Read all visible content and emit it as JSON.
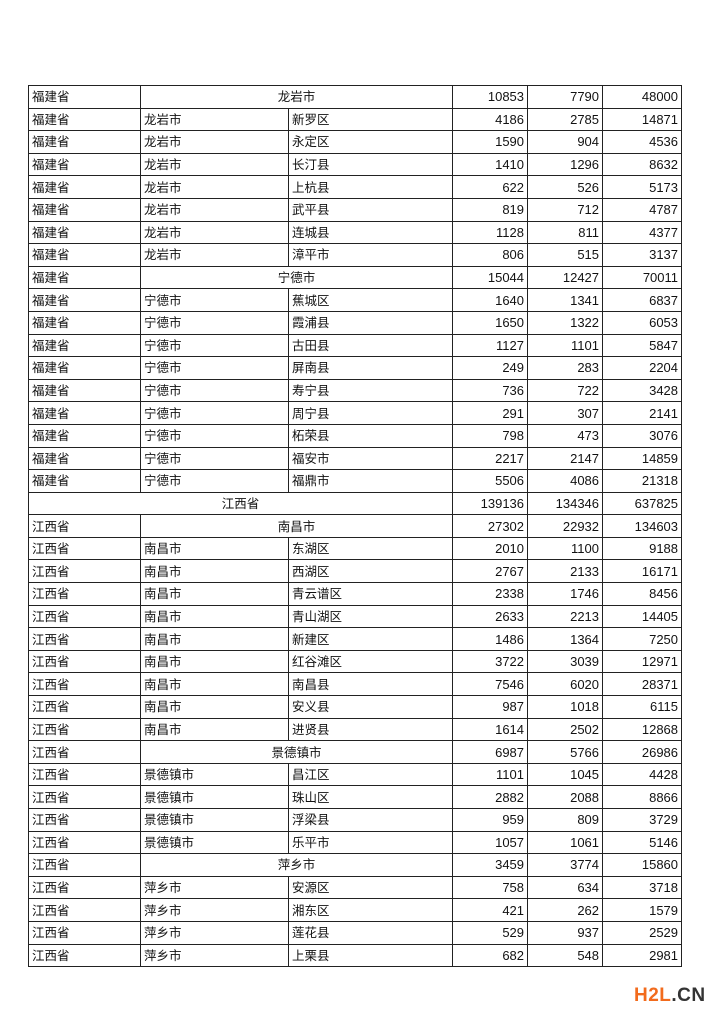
{
  "rows": [
    {
      "type": "city",
      "province": "福建省",
      "city": "龙岩市",
      "v": [
        "10853",
        "7790",
        "48000"
      ]
    },
    {
      "type": "county",
      "province": "福建省",
      "city": "龙岩市",
      "county": "新罗区",
      "v": [
        "4186",
        "2785",
        "14871"
      ]
    },
    {
      "type": "county",
      "province": "福建省",
      "city": "龙岩市",
      "county": "永定区",
      "v": [
        "1590",
        "904",
        "4536"
      ]
    },
    {
      "type": "county",
      "province": "福建省",
      "city": "龙岩市",
      "county": "长汀县",
      "v": [
        "1410",
        "1296",
        "8632"
      ]
    },
    {
      "type": "county",
      "province": "福建省",
      "city": "龙岩市",
      "county": "上杭县",
      "v": [
        "622",
        "526",
        "5173"
      ]
    },
    {
      "type": "county",
      "province": "福建省",
      "city": "龙岩市",
      "county": "武平县",
      "v": [
        "819",
        "712",
        "4787"
      ]
    },
    {
      "type": "county",
      "province": "福建省",
      "city": "龙岩市",
      "county": "连城县",
      "v": [
        "1128",
        "811",
        "4377"
      ]
    },
    {
      "type": "county",
      "province": "福建省",
      "city": "龙岩市",
      "county": "漳平市",
      "v": [
        "806",
        "515",
        "3137"
      ]
    },
    {
      "type": "city",
      "province": "福建省",
      "city": "宁德市",
      "v": [
        "15044",
        "12427",
        "70011"
      ]
    },
    {
      "type": "county",
      "province": "福建省",
      "city": "宁德市",
      "county": "蕉城区",
      "v": [
        "1640",
        "1341",
        "6837"
      ]
    },
    {
      "type": "county",
      "province": "福建省",
      "city": "宁德市",
      "county": "霞浦县",
      "v": [
        "1650",
        "1322",
        "6053"
      ]
    },
    {
      "type": "county",
      "province": "福建省",
      "city": "宁德市",
      "county": "古田县",
      "v": [
        "1127",
        "1101",
        "5847"
      ]
    },
    {
      "type": "county",
      "province": "福建省",
      "city": "宁德市",
      "county": "屏南县",
      "v": [
        "249",
        "283",
        "2204"
      ]
    },
    {
      "type": "county",
      "province": "福建省",
      "city": "宁德市",
      "county": "寿宁县",
      "v": [
        "736",
        "722",
        "3428"
      ]
    },
    {
      "type": "county",
      "province": "福建省",
      "city": "宁德市",
      "county": "周宁县",
      "v": [
        "291",
        "307",
        "2141"
      ]
    },
    {
      "type": "county",
      "province": "福建省",
      "city": "宁德市",
      "county": "柘荣县",
      "v": [
        "798",
        "473",
        "3076"
      ]
    },
    {
      "type": "county",
      "province": "福建省",
      "city": "宁德市",
      "county": "福安市",
      "v": [
        "2217",
        "2147",
        "14859"
      ]
    },
    {
      "type": "county",
      "province": "福建省",
      "city": "宁德市",
      "county": "福鼎市",
      "v": [
        "5506",
        "4086",
        "21318"
      ]
    },
    {
      "type": "province",
      "province": "江西省",
      "v": [
        "139136",
        "134346",
        "637825"
      ]
    },
    {
      "type": "city",
      "province": "江西省",
      "city": "南昌市",
      "v": [
        "27302",
        "22932",
        "134603"
      ]
    },
    {
      "type": "county",
      "province": "江西省",
      "city": "南昌市",
      "county": "东湖区",
      "v": [
        "2010",
        "1100",
        "9188"
      ]
    },
    {
      "type": "county",
      "province": "江西省",
      "city": "南昌市",
      "county": "西湖区",
      "v": [
        "2767",
        "2133",
        "16171"
      ]
    },
    {
      "type": "county",
      "province": "江西省",
      "city": "南昌市",
      "county": "青云谱区",
      "v": [
        "2338",
        "1746",
        "8456"
      ]
    },
    {
      "type": "county",
      "province": "江西省",
      "city": "南昌市",
      "county": "青山湖区",
      "v": [
        "2633",
        "2213",
        "14405"
      ]
    },
    {
      "type": "county",
      "province": "江西省",
      "city": "南昌市",
      "county": "新建区",
      "v": [
        "1486",
        "1364",
        "7250"
      ]
    },
    {
      "type": "county",
      "province": "江西省",
      "city": "南昌市",
      "county": "红谷滩区",
      "v": [
        "3722",
        "3039",
        "12971"
      ]
    },
    {
      "type": "county",
      "province": "江西省",
      "city": "南昌市",
      "county": "南昌县",
      "v": [
        "7546",
        "6020",
        "28371"
      ]
    },
    {
      "type": "county",
      "province": "江西省",
      "city": "南昌市",
      "county": "安义县",
      "v": [
        "987",
        "1018",
        "6115"
      ]
    },
    {
      "type": "county",
      "province": "江西省",
      "city": "南昌市",
      "county": "进贤县",
      "v": [
        "1614",
        "2502",
        "12868"
      ]
    },
    {
      "type": "city",
      "province": "江西省",
      "city": "景德镇市",
      "v": [
        "6987",
        "5766",
        "26986"
      ]
    },
    {
      "type": "county",
      "province": "江西省",
      "city": "景德镇市",
      "county": "昌江区",
      "v": [
        "1101",
        "1045",
        "4428"
      ]
    },
    {
      "type": "county",
      "province": "江西省",
      "city": "景德镇市",
      "county": "珠山区",
      "v": [
        "2882",
        "2088",
        "8866"
      ]
    },
    {
      "type": "county",
      "province": "江西省",
      "city": "景德镇市",
      "county": "浮梁县",
      "v": [
        "959",
        "809",
        "3729"
      ]
    },
    {
      "type": "county",
      "province": "江西省",
      "city": "景德镇市",
      "county": "乐平市",
      "v": [
        "1057",
        "1061",
        "5146"
      ]
    },
    {
      "type": "city",
      "province": "江西省",
      "city": "萍乡市",
      "v": [
        "3459",
        "3774",
        "15860"
      ]
    },
    {
      "type": "county",
      "province": "江西省",
      "city": "萍乡市",
      "county": "安源区",
      "v": [
        "758",
        "634",
        "3718"
      ]
    },
    {
      "type": "county",
      "province": "江西省",
      "city": "萍乡市",
      "county": "湘东区",
      "v": [
        "421",
        "262",
        "1579"
      ]
    },
    {
      "type": "county",
      "province": "江西省",
      "city": "萍乡市",
      "county": "莲花县",
      "v": [
        "529",
        "937",
        "2529"
      ]
    },
    {
      "type": "county",
      "province": "江西省",
      "city": "萍乡市",
      "county": "上栗县",
      "v": [
        "682",
        "548",
        "2981"
      ]
    }
  ],
  "watermark": {
    "part1": "H2L",
    "part2": ".CN",
    "color": "#f26b1d"
  }
}
